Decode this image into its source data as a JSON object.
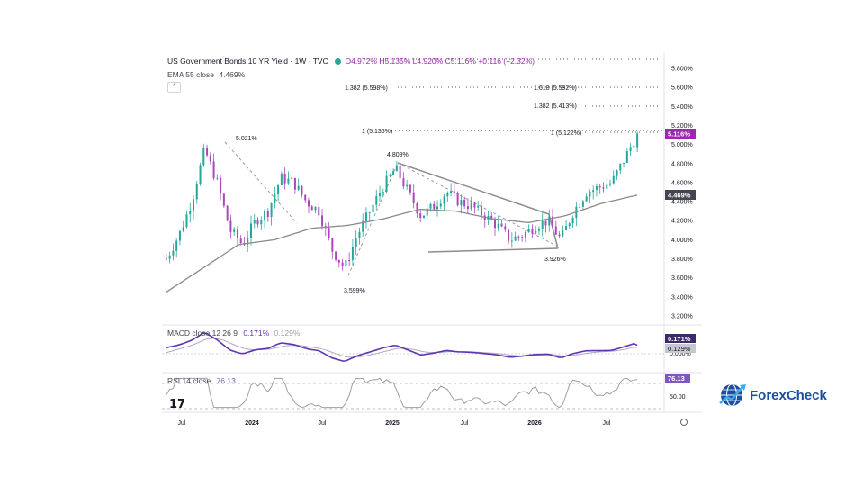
{
  "header": {
    "symbol": "US Government Bonds 10 YR Yield · 1W · TVC",
    "open": "O4.972%",
    "high": "H5.135%",
    "low": "L4.920%",
    "close": "C5.116%",
    "change": "+0.116 (+2.32%)",
    "ema_label": "EMA 55 close",
    "ema_value": "4.469%"
  },
  "price_scale": {
    "ticks": [
      "5.800%",
      "5.600%",
      "5.400%",
      "5.200%",
      "5.000%",
      "4.800%",
      "4.600%",
      "4.400%",
      "4.200%",
      "4.000%",
      "3.800%",
      "3.600%",
      "3.400%",
      "3.200%"
    ],
    "last_price_badge": "5.116%",
    "ema_badge": "4.469%"
  },
  "fib_labels": {
    "left_1382": "1.382 (5.598%)",
    "right_1618": "1.618 (5.592%)",
    "right_1382": "1.382 (5.413%)",
    "left_1": "1 (5.136%)",
    "right_1": "1 (5.122%)"
  },
  "annotations": {
    "high_2023": "5.021%",
    "low_2024": "3.599%",
    "high_2025": "4.809%",
    "low_2026": "3.926%"
  },
  "macd": {
    "label": "MACD close 12 26 9",
    "value1": "0.171%",
    "value2": "0.129%",
    "badge1": "0.171%",
    "badge2": "0.129%",
    "zero_tick": "0.000%"
  },
  "rsi": {
    "label": "RSI 14 close",
    "value": "76.13",
    "badge": "76.13",
    "tick": "50.00"
  },
  "time_axis": [
    "Jul",
    "2024",
    "Jul",
    "2025",
    "Jul",
    "2026",
    "Jul"
  ],
  "brand": {
    "name": "ForexCheck",
    "tv_logo": "17"
  },
  "colors": {
    "up_candle": "#26a69a",
    "down_candle": "#ab47bc",
    "ema": "#8a8a8a",
    "macd_line": "#5e35b1",
    "signal_line": "#b0a8c8",
    "rsi_line": "#9e9ea8",
    "badge_purple": "#9c27b0",
    "badge_dark": "#434651",
    "brand_blue": "#1c4fa0"
  },
  "chart_data": {
    "type": "candlestick",
    "title": "US Government Bonds 10 YR Yield · 1W · TVC",
    "timeframe": "1W",
    "y_unit": "%",
    "ylim": [
      3.2,
      5.8
    ],
    "last": {
      "open": 4.972,
      "high": 5.135,
      "low": 4.92,
      "close": 5.116,
      "change": 0.116,
      "change_pct": 2.32
    },
    "ema55_last": 4.469,
    "x_ticks": [
      "Jul",
      "2024",
      "Jul",
      "2025",
      "Jul",
      "2026",
      "Jul"
    ],
    "close_path": {
      "x": [
        "2023-07",
        "2023-08",
        "2023-09",
        "2023-10",
        "2023-11",
        "2023-12",
        "2024-01",
        "2024-02",
        "2024-03",
        "2024-04",
        "2024-05",
        "2024-06",
        "2024-07",
        "2024-08",
        "2024-09",
        "2024-10",
        "2024-11",
        "2024-12",
        "2025-01",
        "2025-02",
        "2025-03",
        "2025-04",
        "2025-05",
        "2025-06",
        "2025-07",
        "2025-08",
        "2025-09",
        "2025-10",
        "2025-11",
        "2025-12",
        "2026-01",
        "2026-02",
        "2026-03",
        "2026-04",
        "2026-05",
        "2026-06",
        "2026-07",
        "2026-08"
      ],
      "y": [
        3.8,
        4.05,
        4.4,
        4.95,
        4.6,
        4.1,
        3.95,
        4.2,
        4.3,
        4.65,
        4.6,
        4.4,
        4.3,
        3.9,
        3.7,
        4.05,
        4.3,
        4.55,
        4.75,
        4.5,
        4.25,
        4.35,
        4.5,
        4.4,
        4.35,
        4.25,
        4.15,
        4.0,
        4.05,
        4.15,
        4.2,
        4.0,
        4.3,
        4.5,
        4.55,
        4.6,
        4.85,
        5.116
      ]
    },
    "ema55_path": {
      "x": [
        "2023-07",
        "2023-10",
        "2024-01",
        "2024-04",
        "2024-07",
        "2024-10",
        "2025-01",
        "2025-04",
        "2025-07",
        "2025-10",
        "2026-01",
        "2026-04",
        "2026-07",
        "2026-08"
      ],
      "y": [
        3.45,
        3.7,
        3.95,
        4.0,
        4.12,
        4.15,
        4.22,
        4.32,
        4.3,
        4.22,
        4.18,
        4.25,
        4.38,
        4.469
      ]
    },
    "annotated_points": [
      {
        "label": "5.021%",
        "value": 5.021,
        "x": "2023-10"
      },
      {
        "label": "3.599%",
        "value": 3.599,
        "x": "2024-09"
      },
      {
        "label": "4.809%",
        "value": 4.809,
        "x": "2025-01"
      },
      {
        "label": "3.926%",
        "value": 3.926,
        "x": "2026-02"
      }
    ],
    "fib_levels": [
      {
        "label": "1.382 (5.598%)",
        "value": 5.598
      },
      {
        "label": "1.618 (5.592%)",
        "value": 5.592
      },
      {
        "label": "1.382 (5.413%)",
        "value": 5.413
      },
      {
        "label": "1 (5.136%)",
        "value": 5.136
      },
      {
        "label": "1 (5.122%)",
        "value": 5.122
      }
    ],
    "triangle_pattern": {
      "upper": [
        [
          "2025-01",
          4.809
        ],
        [
          "2026-01",
          4.3
        ]
      ],
      "lower": [
        [
          "2025-02",
          3.85
        ],
        [
          "2026-02",
          3.85
        ]
      ]
    },
    "macd": {
      "fast": 12,
      "slow": 26,
      "signal": 9,
      "macd_last": 0.171,
      "signal_last": 0.129
    },
    "rsi": {
      "length": 14,
      "last": 76.13
    }
  }
}
